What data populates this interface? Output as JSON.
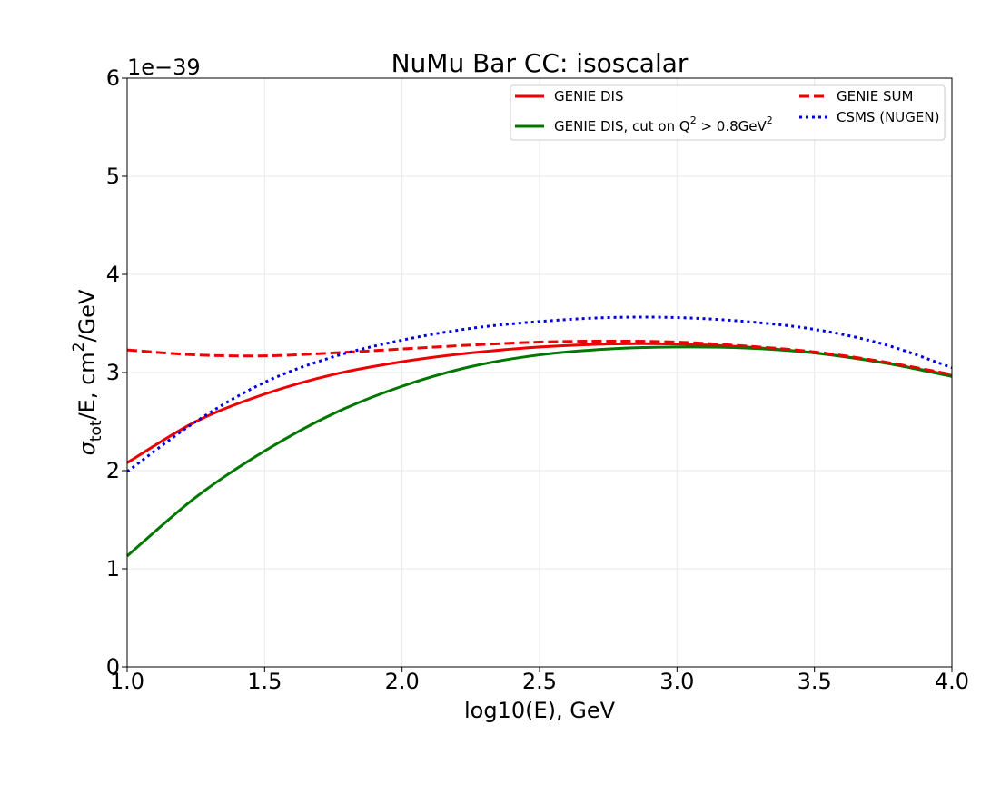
{
  "chart_data": {
    "type": "line",
    "title": "NuMu Bar CC: isoscalar",
    "xlabel": "log10(E), GeV",
    "ylabel_main": "σ",
    "ylabel_sub": "tot",
    "ylabel_mid": "/E, cm",
    "ylabel_sup": "2",
    "ylabel_tail": "/GeV",
    "y_offset_label": "1e−39",
    "xlim": [
      1.0,
      4.0
    ],
    "ylim": [
      0,
      6
    ],
    "x_ticks": [
      "1.0",
      "1.5",
      "2.0",
      "2.5",
      "3.0",
      "3.5",
      "4.0"
    ],
    "y_ticks": [
      "0",
      "1",
      "2",
      "3",
      "4",
      "5",
      "6"
    ],
    "grid": true,
    "legend_position": "top-right",
    "x": [
      1.0,
      1.25,
      1.5,
      1.75,
      2.0,
      2.25,
      2.5,
      2.75,
      3.0,
      3.25,
      3.5,
      3.75,
      4.0
    ],
    "series": [
      {
        "name": "GENIE DIS",
        "color": "#ee0000",
        "style": "solid",
        "values": [
          2.08,
          2.5,
          2.78,
          2.98,
          3.11,
          3.2,
          3.26,
          3.29,
          3.29,
          3.26,
          3.2,
          3.1,
          2.97
        ]
      },
      {
        "name": "GENIE DIS, cut on Q",
        "name_sup1": "2",
        "name_mid": " > 0.8GeV",
        "name_sup2": "2",
        "color": "#007700",
        "style": "solid",
        "values": [
          1.13,
          1.73,
          2.2,
          2.58,
          2.86,
          3.06,
          3.18,
          3.24,
          3.26,
          3.25,
          3.2,
          3.1,
          2.96
        ]
      },
      {
        "name": "GENIE SUM",
        "color": "#ee0000",
        "style": "dashed",
        "values": [
          3.23,
          3.18,
          3.17,
          3.2,
          3.24,
          3.28,
          3.31,
          3.32,
          3.31,
          3.27,
          3.21,
          3.11,
          2.98
        ]
      },
      {
        "name": "CSMS (NUGEN)",
        "color": "#0000dd",
        "style": "dotted",
        "values": [
          1.99,
          2.5,
          2.9,
          3.16,
          3.33,
          3.45,
          3.52,
          3.56,
          3.56,
          3.52,
          3.44,
          3.29,
          3.05
        ]
      }
    ]
  }
}
